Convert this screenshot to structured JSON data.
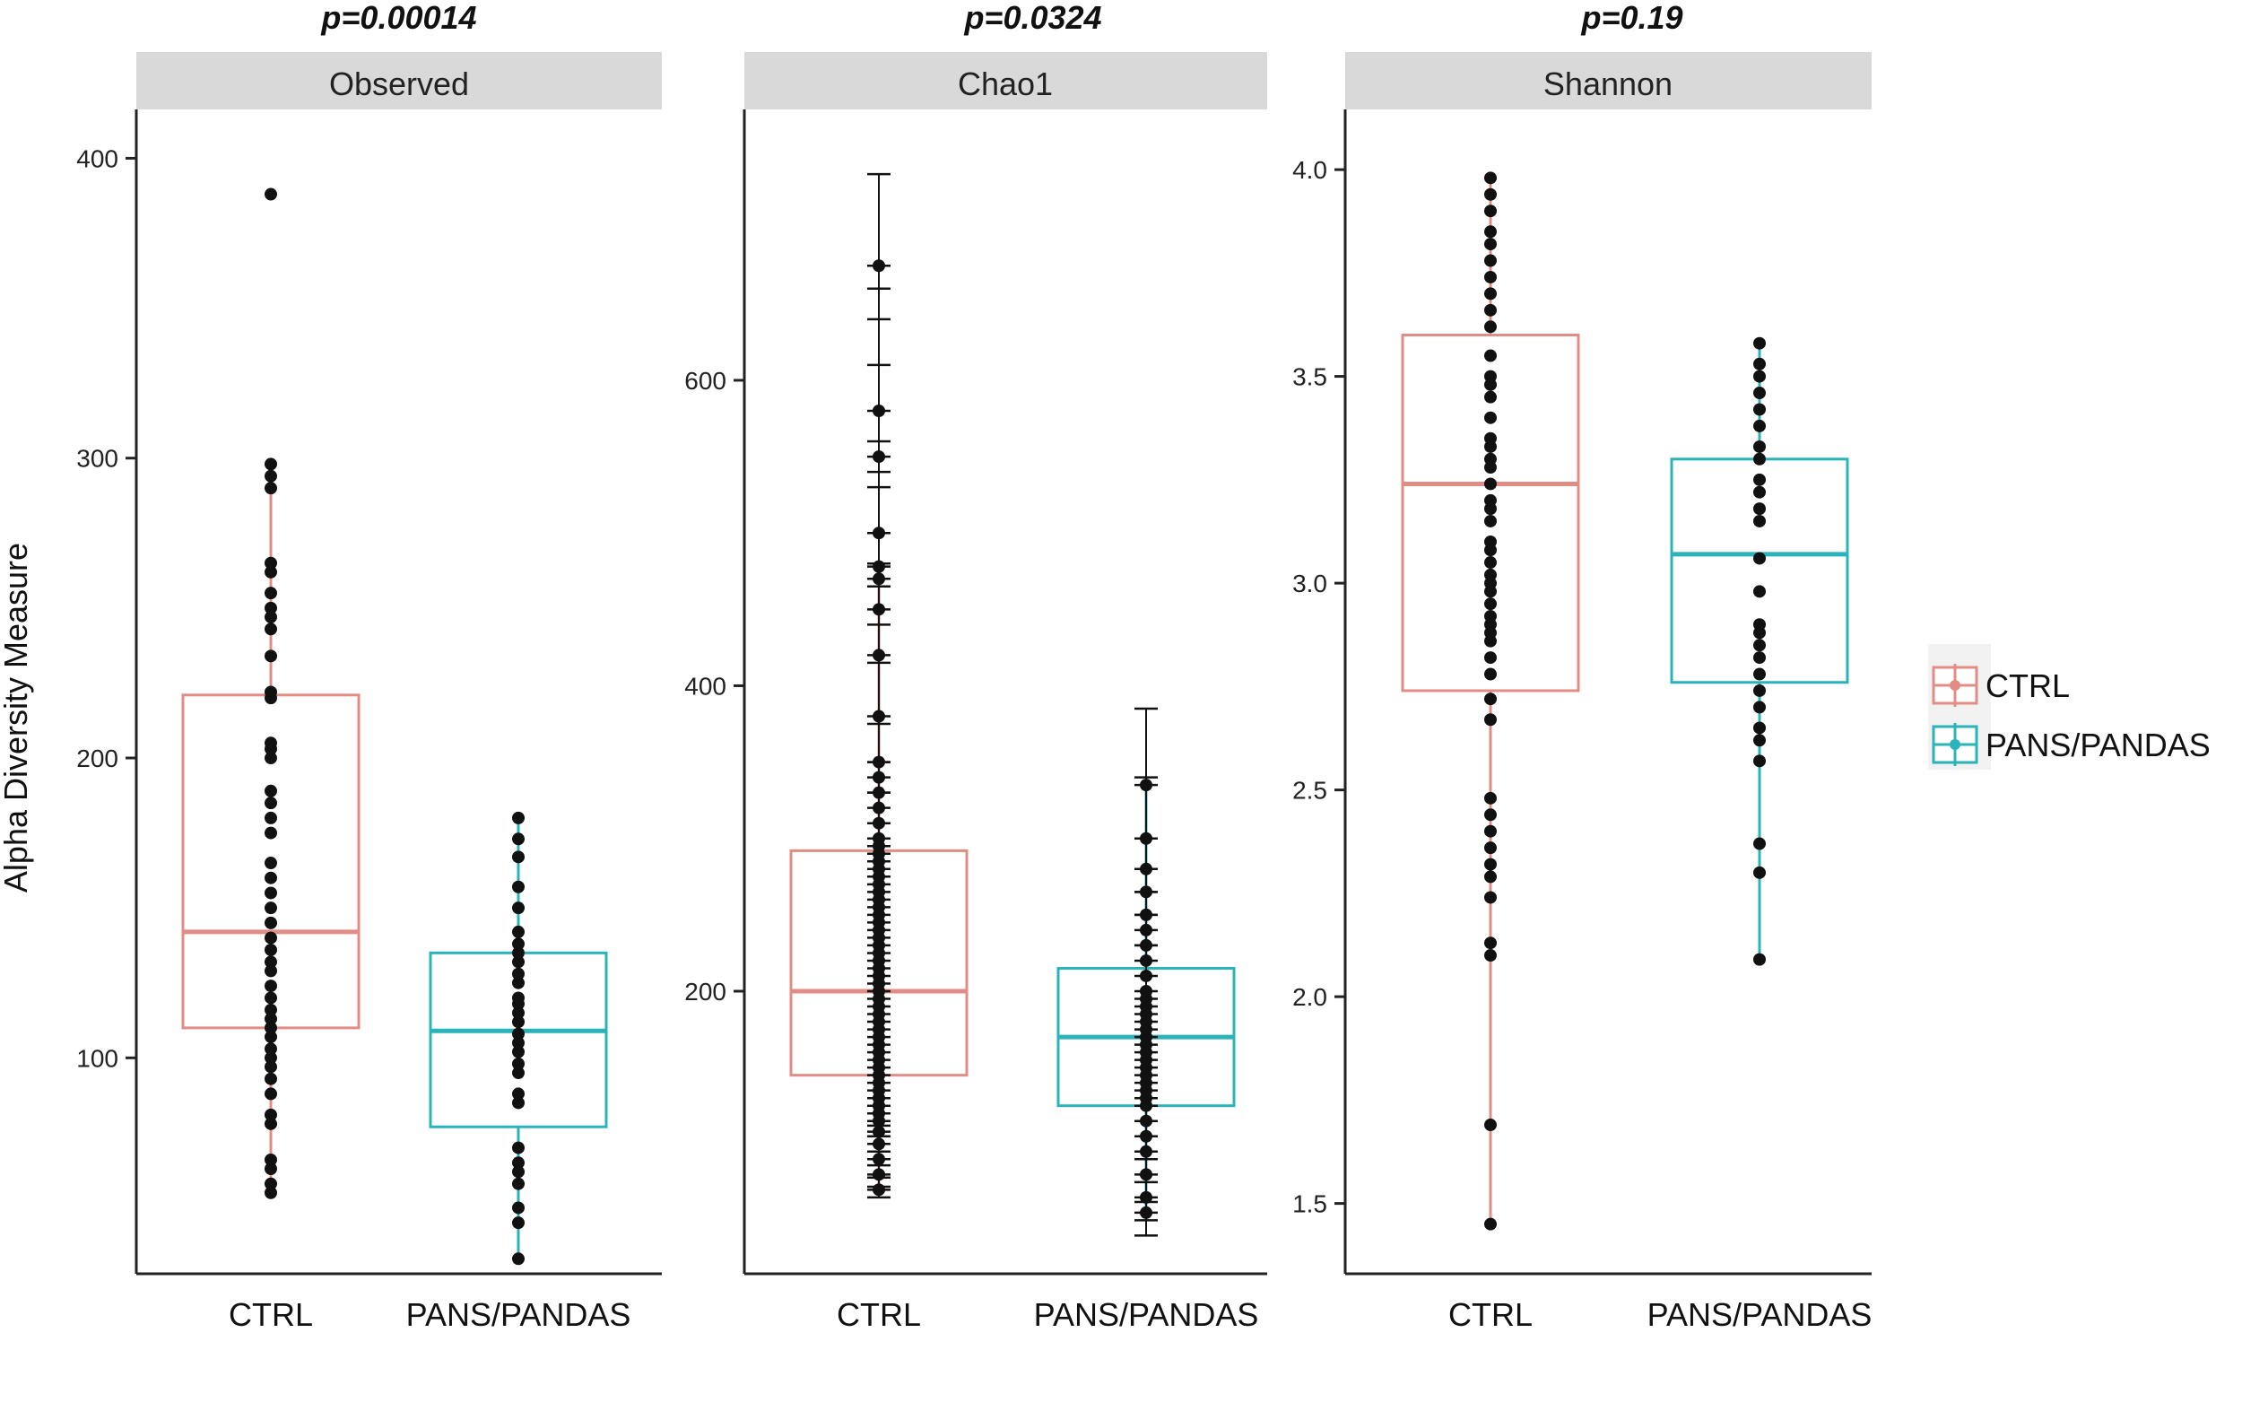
{
  "chart_data": [
    {
      "type": "box",
      "panel": "Observed",
      "title": "p=0.00014",
      "ylabel": "Alpha Diversity Measure",
      "ylim": [
        28,
        410
      ],
      "yticks": [
        100,
        200,
        300,
        400
      ],
      "categories": [
        "CTRL",
        "PANS/PANDAS"
      ],
      "groups": [
        {
          "name": "CTRL",
          "color": "#e28c86",
          "box": {
            "whisker_low": 55,
            "q1": 110,
            "median": 142,
            "q3": 221,
            "whisker_high": 298
          },
          "points": [
            55,
            58,
            63,
            66,
            78,
            81,
            88,
            93,
            97,
            100,
            103,
            107,
            110,
            113,
            116,
            120,
            124,
            129,
            132,
            136,
            140,
            145,
            150,
            155,
            160,
            165,
            175,
            180,
            185,
            189,
            200,
            203,
            205,
            220,
            222,
            234,
            243,
            247,
            250,
            255,
            262,
            265,
            290,
            294,
            298,
            388
          ]
        },
        {
          "name": "PANS/PANDAS",
          "color": "#2ab3b8",
          "box": {
            "whisker_low": 33,
            "q1": 77,
            "median": 109,
            "q3": 135,
            "whisker_high": 180
          },
          "points": [
            33,
            45,
            50,
            58,
            62,
            65,
            70,
            85,
            88,
            95,
            98,
            102,
            105,
            108,
            112,
            115,
            118,
            120,
            125,
            128,
            132,
            135,
            138,
            142,
            150,
            157,
            167,
            173,
            180
          ]
        }
      ]
    },
    {
      "type": "box",
      "panel": "Chao1",
      "title": "p=0.0324",
      "ylim": [
        15,
        765
      ],
      "yticks": [
        200,
        400,
        600
      ],
      "categories": [
        "CTRL",
        "PANS/PANDAS"
      ],
      "groups": [
        {
          "name": "CTRL",
          "color": "#e28c86",
          "box": {
            "whisker_low": 70,
            "q1": 145,
            "median": 200,
            "q3": 292,
            "whisker_high": 478
          },
          "points": [
            70,
            80,
            90,
            100,
            108,
            115,
            120,
            125,
            130,
            135,
            140,
            145,
            150,
            155,
            160,
            165,
            170,
            175,
            180,
            185,
            190,
            195,
            200,
            205,
            210,
            215,
            220,
            225,
            230,
            235,
            240,
            245,
            250,
            255,
            260,
            265,
            270,
            275,
            280,
            285,
            290,
            295,
            300,
            310,
            320,
            330,
            340,
            350,
            380,
            420,
            450,
            470,
            478,
            500,
            550,
            580,
            675
          ],
          "error_tops": [
            735,
            660,
            640,
            610,
            560,
            540,
            530,
            500,
            480,
            465,
            440,
            415,
            375,
            350,
            330
          ],
          "error_bottoms": [
            65,
            72,
            78,
            86,
            95,
            105,
            112
          ]
        },
        {
          "name": "PANS/PANDAS",
          "color": "#2ab3b8",
          "box": {
            "whisker_low": 55,
            "q1": 125,
            "median": 170,
            "q3": 215,
            "whisker_high": 335
          },
          "points": [
            55,
            65,
            80,
            95,
            105,
            115,
            125,
            130,
            135,
            140,
            145,
            150,
            155,
            160,
            165,
            170,
            175,
            180,
            185,
            190,
            195,
            200,
            210,
            220,
            230,
            240,
            250,
            265,
            280,
            300,
            335
          ],
          "error_tops": [
            385,
            340,
            300,
            280,
            265,
            250,
            230
          ],
          "error_bottoms": [
            40,
            50,
            62,
            75,
            90
          ]
        }
      ]
    },
    {
      "type": "box",
      "panel": "Shannon",
      "title": "p=0.19",
      "ylim": [
        1.33,
        4.1
      ],
      "yticks": [
        "1.5",
        "2.0",
        "2.5",
        "3.0",
        "3.5",
        "4.0"
      ],
      "categories": [
        "CTRL",
        "PANS/PANDAS"
      ],
      "groups": [
        {
          "name": "CTRL",
          "color": "#e28c86",
          "box": {
            "whisker_low": 1.45,
            "q1": 2.74,
            "median": 3.24,
            "q3": 3.6,
            "whisker_high": 3.98
          },
          "points": [
            1.45,
            1.69,
            2.1,
            2.13,
            2.24,
            2.29,
            2.32,
            2.36,
            2.4,
            2.44,
            2.48,
            2.67,
            2.72,
            2.78,
            2.82,
            2.86,
            2.88,
            2.9,
            2.92,
            2.95,
            2.98,
            3.0,
            3.02,
            3.05,
            3.08,
            3.1,
            3.15,
            3.18,
            3.2,
            3.24,
            3.28,
            3.3,
            3.33,
            3.35,
            3.4,
            3.45,
            3.48,
            3.5,
            3.55,
            3.62,
            3.66,
            3.7,
            3.74,
            3.78,
            3.82,
            3.85,
            3.9,
            3.94,
            3.98
          ]
        },
        {
          "name": "PANS/PANDAS",
          "color": "#2ab3b8",
          "box": {
            "whisker_low": 2.09,
            "q1": 2.76,
            "median": 3.07,
            "q3": 3.3,
            "whisker_high": 3.58
          },
          "points": [
            2.09,
            2.3,
            2.37,
            2.57,
            2.62,
            2.65,
            2.7,
            2.74,
            2.78,
            2.82,
            2.85,
            2.88,
            2.9,
            2.98,
            3.06,
            3.15,
            3.18,
            3.22,
            3.25,
            3.3,
            3.33,
            3.38,
            3.42,
            3.46,
            3.5,
            3.53,
            3.58
          ]
        }
      ]
    }
  ],
  "legend": {
    "position": "right",
    "entries": [
      {
        "label": "CTRL",
        "color": "#e28c86"
      },
      {
        "label": "PANS/PANDAS",
        "color": "#2ab3b8"
      }
    ]
  },
  "colors": {
    "point": "#111111",
    "axis": "#222222",
    "strip": "#d9d9d9",
    "errorbar": "#111111"
  }
}
